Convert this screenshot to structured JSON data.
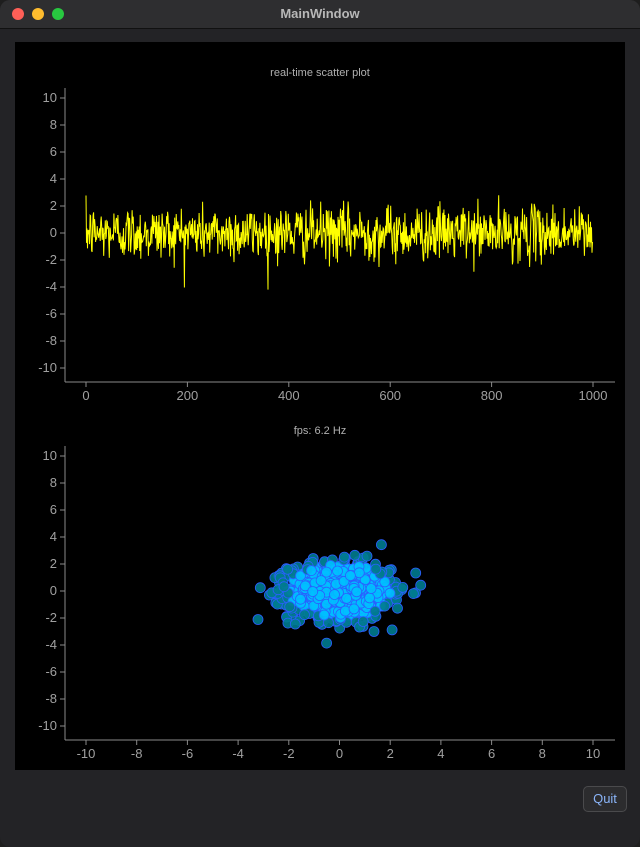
{
  "window": {
    "title": "MainWindow",
    "buttons": {
      "close": "close-icon",
      "minimize": "minimize-icon",
      "zoom": "zoom-icon"
    }
  },
  "footer": {
    "quit_label": "Quit"
  },
  "colors": {
    "line": "#ffff00",
    "scatter_fill": "#00bfff",
    "scatter_dark": "#007b8f",
    "scatter_edge": "#2a5fff"
  },
  "chart_data": [
    {
      "type": "line",
      "title": "real-time scatter plot",
      "xlabel": "",
      "ylabel": "",
      "xlim": [
        0,
        1000
      ],
      "ylim": [
        -10,
        10
      ],
      "xticks": [
        0,
        200,
        400,
        600,
        800,
        1000
      ],
      "yticks": [
        10,
        8,
        6,
        4,
        2,
        0,
        -2,
        -4,
        -6,
        -8,
        -10
      ],
      "grid": false,
      "series": [
        {
          "n_points": 1000,
          "distribution": "normal",
          "mean": 0,
          "std": 1
        }
      ]
    },
    {
      "type": "scatter",
      "title": "fps: 6.2 Hz",
      "xlabel": "",
      "ylabel": "",
      "xlim": [
        -10,
        10
      ],
      "ylim": [
        -10,
        10
      ],
      "xticks": [
        -10,
        -8,
        -6,
        -4,
        -2,
        0,
        2,
        4,
        6,
        8,
        10
      ],
      "yticks": [
        10,
        8,
        6,
        4,
        2,
        0,
        -2,
        -4,
        -6,
        -8,
        -10
      ],
      "grid": false,
      "series": [
        {
          "n_points": 1000,
          "distribution": "normal",
          "mean": [
            0,
            0
          ],
          "std": [
            1,
            1
          ]
        }
      ]
    }
  ]
}
